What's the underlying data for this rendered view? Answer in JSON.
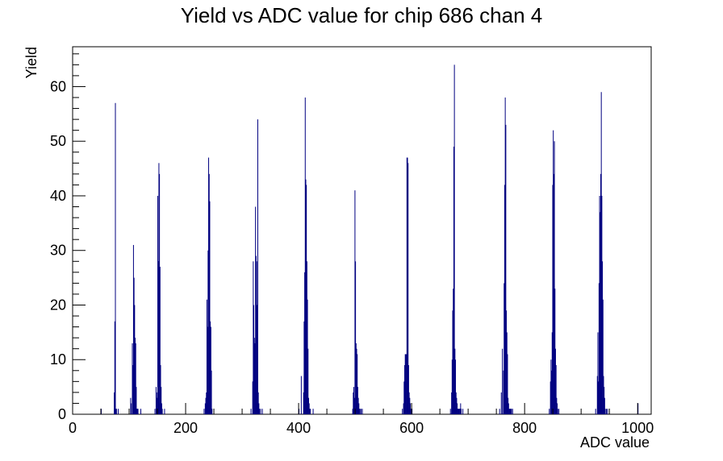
{
  "chart_data": {
    "type": "bar",
    "title": "Yield vs ADC value for chip 686 chan 4",
    "xlabel": "ADC value",
    "ylabel": "Yield",
    "xlim": [
      0,
      1024
    ],
    "ylim": [
      0,
      67.3
    ],
    "x_ticks": [
      0,
      200,
      400,
      600,
      800,
      1000
    ],
    "y_ticks": [
      0,
      10,
      20,
      30,
      40,
      50,
      60
    ],
    "bar_color": "#000080",
    "grid": false,
    "series": [
      {
        "x": [
          50,
          73,
          74,
          75,
          76,
          77,
          80,
          102,
          103,
          105,
          106,
          107,
          108,
          109,
          110,
          111,
          112,
          113,
          114,
          115,
          120,
          145,
          147,
          148,
          149,
          150,
          151,
          152,
          153,
          154,
          155,
          156,
          157,
          158,
          162,
          232,
          234,
          235,
          236,
          237,
          238,
          239,
          240,
          241,
          242,
          243,
          244,
          245,
          246,
          315,
          318,
          319,
          320,
          321,
          322,
          323,
          324,
          325,
          326,
          327,
          328,
          329,
          330,
          332,
          335,
          400,
          404,
          408,
          409,
          410,
          411,
          412,
          413,
          414,
          415,
          416,
          417,
          418,
          419,
          420,
          425,
          495,
          496,
          497,
          498,
          499,
          500,
          501,
          502,
          503,
          504,
          505,
          506,
          507,
          508,
          510,
          512,
          583,
          585,
          586,
          587,
          588,
          589,
          590,
          591,
          592,
          593,
          594,
          595,
          596,
          597,
          598,
          600,
          668,
          670,
          671,
          672,
          673,
          674,
          675,
          676,
          677,
          678,
          679,
          680,
          681,
          682,
          683,
          684,
          685,
          686,
          687,
          690,
          755,
          758,
          760,
          762,
          763,
          764,
          765,
          766,
          767,
          768,
          769,
          770,
          771,
          772,
          773,
          774,
          775,
          776,
          778,
          843,
          845,
          846,
          847,
          848,
          849,
          850,
          851,
          852,
          853,
          854,
          855,
          856,
          857,
          858,
          860,
          925,
          928,
          929,
          930,
          931,
          932,
          933,
          934,
          935,
          936,
          937,
          938,
          939,
          940,
          941,
          942,
          944,
          946,
          1000
        ],
        "values": [
          1,
          4,
          17,
          57,
          1,
          1,
          1,
          3,
          2,
          13,
          9,
          31,
          25,
          20,
          14,
          13,
          5,
          1,
          1,
          1,
          1,
          1,
          5,
          4,
          3,
          40,
          28,
          46,
          44,
          27,
          9,
          5,
          2,
          1,
          1,
          1,
          2,
          3,
          4,
          21,
          16,
          30,
          47,
          44,
          39,
          17,
          16,
          8,
          1,
          1,
          6,
          28,
          20,
          14,
          13,
          38,
          29,
          28,
          20,
          54,
          4,
          2,
          1,
          1,
          1,
          1,
          7,
          4,
          17,
          26,
          58,
          43,
          42,
          28,
          21,
          12,
          3,
          2,
          1,
          1,
          1,
          1,
          4,
          5,
          3,
          41,
          28,
          13,
          12,
          11,
          5,
          3,
          2,
          1,
          1,
          1,
          1,
          1,
          2,
          6,
          9,
          11,
          11,
          11,
          47,
          47,
          46,
          9,
          4,
          3,
          2,
          1,
          1,
          1,
          4,
          10,
          19,
          23,
          49,
          64,
          12,
          10,
          4,
          3,
          2,
          1,
          1,
          1,
          1,
          1,
          2,
          1,
          1,
          1,
          4,
          12,
          8,
          24,
          42,
          58,
          53,
          19,
          15,
          11,
          3,
          2,
          1,
          1,
          1,
          1,
          1,
          1,
          1,
          6,
          10,
          8,
          15,
          42,
          52,
          44,
          50,
          23,
          12,
          9,
          3,
          2,
          1,
          1,
          1,
          7,
          15,
          6,
          24,
          40,
          37,
          44,
          59,
          40,
          28,
          21,
          7,
          5,
          3,
          1,
          1,
          1,
          2
        ]
      }
    ]
  }
}
